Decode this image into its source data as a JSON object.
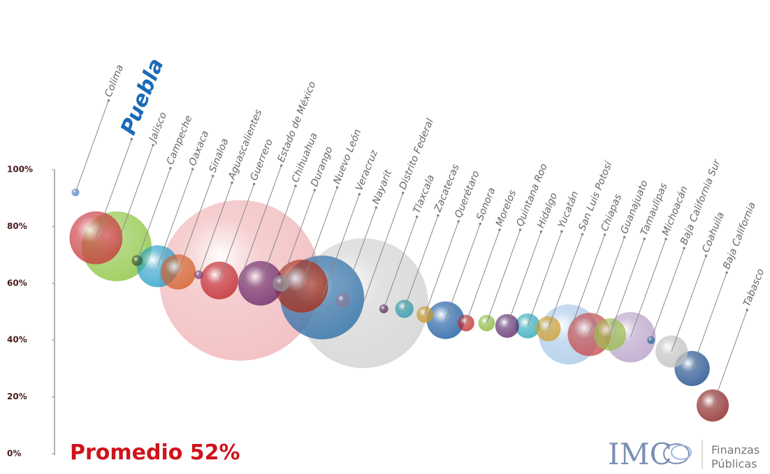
{
  "chart_data": {
    "type": "bubble",
    "categories": [
      "Colima",
      "Puebla",
      "Jalisco",
      "Campeche",
      "Oaxaca",
      "Sinaloa",
      "Aguascalientes",
      "Guerrero",
      "Estado de México",
      "Chihuahua",
      "Durango",
      "Nuevo León",
      "Veracruz",
      "Nayarit",
      "Distrito Federal",
      "Tlaxcala",
      "Zacatecas",
      "Querétaro",
      "Sonora",
      "Morelos",
      "Quintana Roo",
      "Hidalgo",
      "Yucatán",
      "San Luis Potosí",
      "Chiapas",
      "Guanajuato",
      "Tamaulipas",
      "Michoacán",
      "Baja California Sur",
      "Coahuila",
      "Baja California",
      "Tabasco"
    ],
    "values": [
      92,
      76,
      73,
      68,
      66,
      64,
      63,
      61,
      61,
      60,
      60,
      59,
      55,
      54,
      53,
      51,
      51,
      49,
      47,
      46,
      46,
      45,
      45,
      44,
      42,
      42,
      42,
      41,
      40,
      36,
      30,
      17
    ],
    "sizes": [
      3,
      144,
      250,
      6,
      90,
      63,
      4,
      73,
      1323,
      102,
      14,
      144,
      360,
      10,
      865,
      4,
      17,
      14,
      73,
      14,
      14,
      29,
      32,
      32,
      185,
      96,
      53,
      130,
      3,
      53,
      63,
      53
    ],
    "colors": [
      "#4a7fc1",
      "#c93a3e",
      "#8bc43f",
      "#3d5a2a",
      "#2aa0c8",
      "#d4602a",
      "#7a3a7a",
      "#c0282e",
      "#e88a8e",
      "#6a2a6a",
      "#9a9a9a",
      "#a8321e",
      "#2d6fa8",
      "#8a7a9a",
      "#b8b8b8",
      "#5a2a5a",
      "#2a98a8",
      "#c89a2a",
      "#1a5aa0",
      "#c02a2a",
      "#8ab83a",
      "#5a2a6a",
      "#2aa8b8",
      "#d0a030",
      "#a8c8e8",
      "#c84a4a",
      "#9ac050",
      "#b8a0c8",
      "#2a6a9a",
      "#c0c0c0",
      "#1a4a8a",
      "#8a2020"
    ],
    "highlight": "Puebla",
    "ylim": [
      0,
      100
    ],
    "yticks": [
      {
        "value": 0,
        "label": "0%"
      },
      {
        "value": 20,
        "label": "20%"
      },
      {
        "value": 40,
        "label": "40%"
      },
      {
        "value": 60,
        "label": "60%"
      },
      {
        "value": 80,
        "label": "80%"
      },
      {
        "value": 100,
        "label": "100%"
      }
    ],
    "annotation": "Promedio 52%",
    "logo": {
      "brand": "IMC",
      "lines": [
        "Finanzas",
        "Públicas"
      ]
    }
  }
}
